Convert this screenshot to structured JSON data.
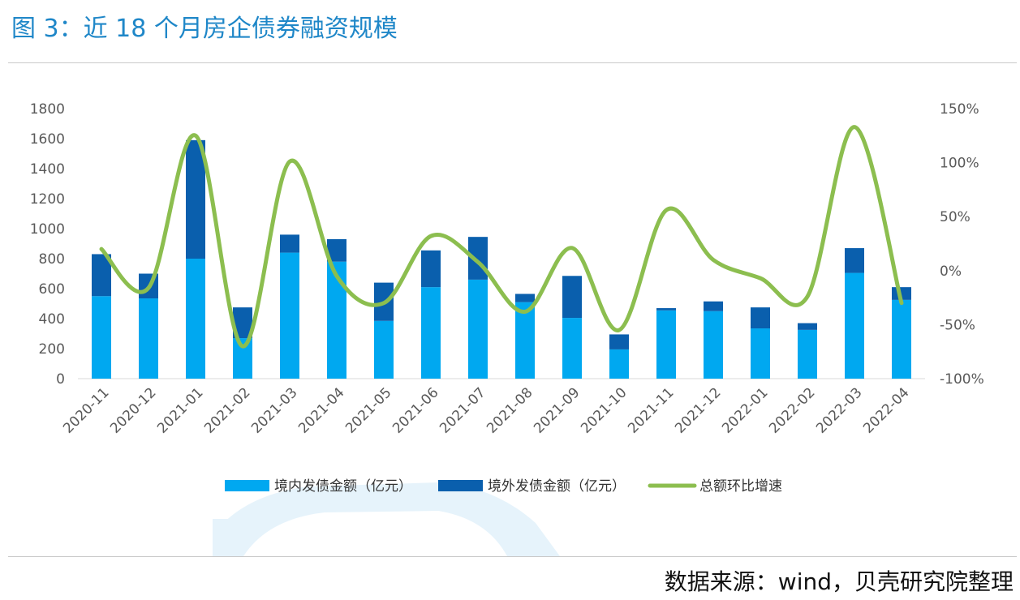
{
  "figure": {
    "title": "图 3：近 18 个月房企债券融资规模",
    "source": "数据来源：wind，贝壳研究院整理"
  },
  "colors": {
    "title": "#1f87c8",
    "domestic": "#00a8f0",
    "overseas": "#0a5fad",
    "growth": "#8cbe4f",
    "watermark": "#e3f2fb"
  },
  "chart_data": {
    "type": "bar",
    "stacked": true,
    "categories": [
      "2020-11",
      "2020-12",
      "2021-01",
      "2021-02",
      "2021-03",
      "2021-04",
      "2021-05",
      "2021-06",
      "2021-07",
      "2021-08",
      "2021-09",
      "2021-10",
      "2021-11",
      "2021-12",
      "2022-01",
      "2022-02",
      "2022-03",
      "2022-04"
    ],
    "series": [
      {
        "name": "境内发债金额（亿元）",
        "type": "bar",
        "axis": "left",
        "values": [
          550,
          535,
          800,
          270,
          840,
          780,
          385,
          610,
          660,
          510,
          405,
          195,
          455,
          450,
          335,
          325,
          705,
          525
        ]
      },
      {
        "name": "境外发债金额（亿元）",
        "type": "bar",
        "axis": "left",
        "values": [
          280,
          165,
          790,
          205,
          120,
          150,
          255,
          245,
          285,
          55,
          280,
          100,
          15,
          65,
          140,
          45,
          165,
          85
        ]
      },
      {
        "name": "总额环比增速",
        "type": "line",
        "axis": "right",
        "unit": "%",
        "values": [
          20,
          -16,
          125,
          -70,
          101,
          -5,
          -30,
          32,
          8,
          -38,
          21,
          -55,
          56,
          10,
          -7,
          -24,
          133,
          -30
        ]
      }
    ],
    "left_axis": {
      "ylim": [
        0,
        1800
      ],
      "ticks": [
        0,
        200,
        400,
        600,
        800,
        1000,
        1200,
        1400,
        1600,
        1800
      ]
    },
    "right_axis": {
      "ylim": [
        -100,
        150
      ],
      "ticks": [
        "150%",
        "100%",
        "50%",
        "0%",
        "-50%",
        "-100%"
      ]
    },
    "legend_position": "bottom",
    "grid": false
  }
}
